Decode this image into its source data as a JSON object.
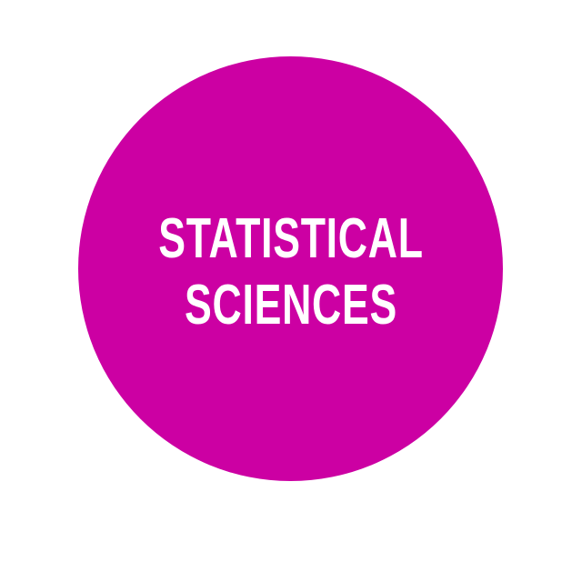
{
  "badge": {
    "line_1": "STATISTICAL",
    "line_2": "SCIENCES",
    "fill_color": "#cc00a3",
    "text_color": "#ffffff",
    "background_color": "#ffffff"
  }
}
